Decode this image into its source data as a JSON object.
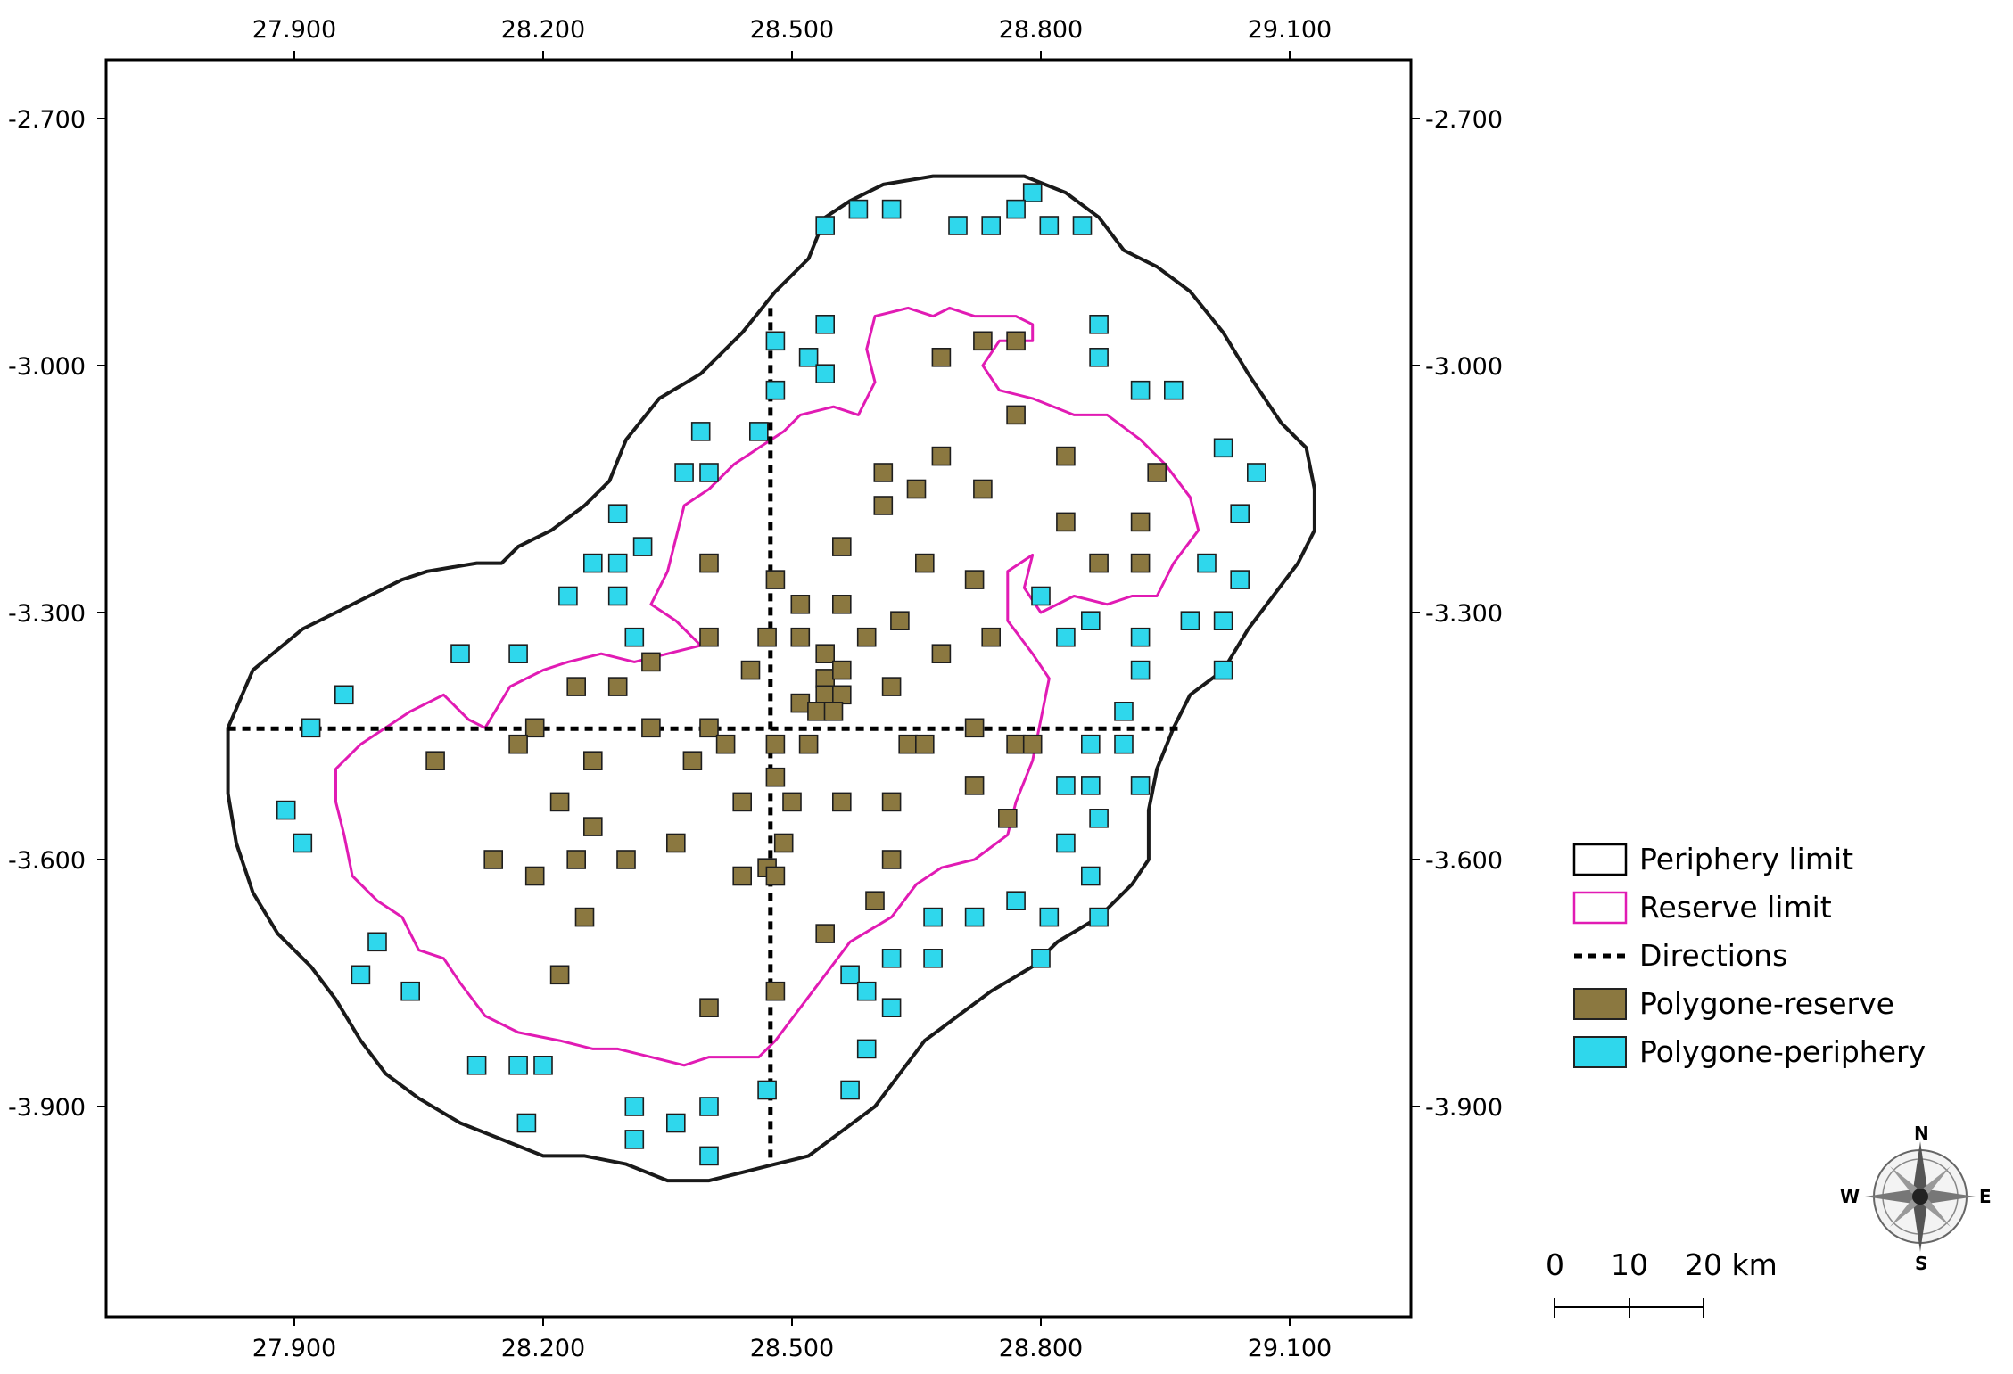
{
  "map": {
    "x_ticks": [
      "27.900",
      "28.200",
      "28.500",
      "28.800",
      "29.100"
    ],
    "y_ticks": [
      "-2.700",
      "-3.000",
      "-3.300",
      "-3.600",
      "-3.900"
    ],
    "x_tick_values": [
      27.9,
      28.2,
      28.5,
      28.8,
      29.1
    ],
    "y_tick_values": [
      -2.7,
      -3.0,
      -3.3,
      -3.6,
      -3.9
    ]
  },
  "legend": {
    "periphery_label": "Periphery limit",
    "reserve_label": "Reserve limit",
    "directions_label": "Directions",
    "polygon_reserve_label": "Polygone-reserve",
    "polygon_periphery_label": "Polygone-periphery"
  },
  "scalebar": {
    "label_0": "0",
    "label_10": "10",
    "label_20": "20 km"
  },
  "compass": {
    "n": "N",
    "s": "S",
    "e": "E",
    "w": "W"
  },
  "colors": {
    "reserve_fill": "#8b7840",
    "periphery_fill": "#2fd7ec",
    "reserve_line": "#e11bb4",
    "boundary_line": "#1a1a1a"
  },
  "chart_data": {
    "type": "map",
    "extent": {
      "lon": [
        27.67,
        29.24
      ],
      "lat": [
        -4.24,
        -2.63
      ]
    },
    "directions": {
      "horizontal_lat": -3.441,
      "horizontal_lon_range": [
        27.82,
        28.965
      ],
      "vertical_lon": 28.474,
      "vertical_lat_range": [
        -2.93,
        -3.965
      ]
    },
    "periphery_limit": [
      [
        27.82,
        -3.44
      ],
      [
        27.85,
        -3.37
      ],
      [
        27.91,
        -3.32
      ],
      [
        27.97,
        -3.29
      ],
      [
        28.03,
        -3.26
      ],
      [
        28.06,
        -3.25
      ],
      [
        28.12,
        -3.24
      ],
      [
        28.15,
        -3.24
      ],
      [
        28.17,
        -3.22
      ],
      [
        28.21,
        -3.2
      ],
      [
        28.25,
        -3.17
      ],
      [
        28.28,
        -3.14
      ],
      [
        28.3,
        -3.09
      ],
      [
        28.34,
        -3.04
      ],
      [
        28.39,
        -3.01
      ],
      [
        28.44,
        -2.96
      ],
      [
        28.48,
        -2.91
      ],
      [
        28.52,
        -2.87
      ],
      [
        28.54,
        -2.82
      ],
      [
        28.57,
        -2.8
      ],
      [
        28.61,
        -2.78
      ],
      [
        28.67,
        -2.77
      ],
      [
        28.72,
        -2.77
      ],
      [
        28.78,
        -2.77
      ],
      [
        28.83,
        -2.79
      ],
      [
        28.87,
        -2.82
      ],
      [
        28.9,
        -2.86
      ],
      [
        28.94,
        -2.88
      ],
      [
        28.98,
        -2.91
      ],
      [
        29.02,
        -2.96
      ],
      [
        29.05,
        -3.01
      ],
      [
        29.09,
        -3.07
      ],
      [
        29.12,
        -3.1
      ],
      [
        29.13,
        -3.15
      ],
      [
        29.13,
        -3.2
      ],
      [
        29.11,
        -3.24
      ],
      [
        29.08,
        -3.28
      ],
      [
        29.05,
        -3.32
      ],
      [
        29.02,
        -3.37
      ],
      [
        28.98,
        -3.4
      ],
      [
        28.96,
        -3.44
      ],
      [
        28.94,
        -3.49
      ],
      [
        28.93,
        -3.54
      ],
      [
        28.93,
        -3.6
      ],
      [
        28.91,
        -3.63
      ],
      [
        28.87,
        -3.67
      ],
      [
        28.82,
        -3.7
      ],
      [
        28.79,
        -3.73
      ],
      [
        28.74,
        -3.76
      ],
      [
        28.7,
        -3.79
      ],
      [
        28.66,
        -3.82
      ],
      [
        28.63,
        -3.86
      ],
      [
        28.6,
        -3.9
      ],
      [
        28.56,
        -3.93
      ],
      [
        28.52,
        -3.96
      ],
      [
        28.48,
        -3.97
      ],
      [
        28.44,
        -3.98
      ],
      [
        28.4,
        -3.99
      ],
      [
        28.35,
        -3.99
      ],
      [
        28.3,
        -3.97
      ],
      [
        28.25,
        -3.96
      ],
      [
        28.2,
        -3.96
      ],
      [
        28.15,
        -3.94
      ],
      [
        28.1,
        -3.92
      ],
      [
        28.05,
        -3.89
      ],
      [
        28.01,
        -3.86
      ],
      [
        27.98,
        -3.82
      ],
      [
        27.95,
        -3.77
      ],
      [
        27.92,
        -3.73
      ],
      [
        27.88,
        -3.69
      ],
      [
        27.85,
        -3.64
      ],
      [
        27.83,
        -3.58
      ],
      [
        27.82,
        -3.52
      ],
      [
        27.82,
        -3.44
      ]
    ],
    "reserve_limit": [
      [
        27.95,
        -3.49
      ],
      [
        27.98,
        -3.46
      ],
      [
        28.01,
        -3.44
      ],
      [
        28.04,
        -3.42
      ],
      [
        28.08,
        -3.4
      ],
      [
        28.11,
        -3.43
      ],
      [
        28.13,
        -3.44
      ],
      [
        28.16,
        -3.39
      ],
      [
        28.2,
        -3.37
      ],
      [
        28.23,
        -3.36
      ],
      [
        28.27,
        -3.35
      ],
      [
        28.31,
        -3.36
      ],
      [
        28.35,
        -3.35
      ],
      [
        28.39,
        -3.34
      ],
      [
        28.36,
        -3.31
      ],
      [
        28.33,
        -3.29
      ],
      [
        28.35,
        -3.25
      ],
      [
        28.36,
        -3.21
      ],
      [
        28.37,
        -3.17
      ],
      [
        28.4,
        -3.15
      ],
      [
        28.43,
        -3.12
      ],
      [
        28.46,
        -3.1
      ],
      [
        28.49,
        -3.08
      ],
      [
        28.51,
        -3.06
      ],
      [
        28.55,
        -3.05
      ],
      [
        28.58,
        -3.06
      ],
      [
        28.6,
        -3.02
      ],
      [
        28.59,
        -2.98
      ],
      [
        28.6,
        -2.94
      ],
      [
        28.64,
        -2.93
      ],
      [
        28.67,
        -2.94
      ],
      [
        28.69,
        -2.93
      ],
      [
        28.72,
        -2.94
      ],
      [
        28.77,
        -2.94
      ],
      [
        28.79,
        -2.95
      ],
      [
        28.79,
        -2.97
      ],
      [
        28.75,
        -2.97
      ],
      [
        28.73,
        -3.0
      ],
      [
        28.75,
        -3.03
      ],
      [
        28.79,
        -3.04
      ],
      [
        28.84,
        -3.06
      ],
      [
        28.88,
        -3.06
      ],
      [
        28.92,
        -3.09
      ],
      [
        28.95,
        -3.12
      ],
      [
        28.98,
        -3.16
      ],
      [
        28.99,
        -3.2
      ],
      [
        28.96,
        -3.24
      ],
      [
        28.94,
        -3.28
      ],
      [
        28.91,
        -3.28
      ],
      [
        28.88,
        -3.29
      ],
      [
        28.84,
        -3.28
      ],
      [
        28.8,
        -3.3
      ],
      [
        28.78,
        -3.27
      ],
      [
        28.79,
        -3.23
      ],
      [
        28.76,
        -3.25
      ],
      [
        28.76,
        -3.31
      ],
      [
        28.79,
        -3.35
      ],
      [
        28.81,
        -3.38
      ],
      [
        28.8,
        -3.43
      ],
      [
        28.79,
        -3.48
      ],
      [
        28.77,
        -3.53
      ],
      [
        28.76,
        -3.57
      ],
      [
        28.72,
        -3.6
      ],
      [
        28.68,
        -3.61
      ],
      [
        28.65,
        -3.63
      ],
      [
        28.62,
        -3.67
      ],
      [
        28.57,
        -3.7
      ],
      [
        28.54,
        -3.74
      ],
      [
        28.51,
        -3.78
      ],
      [
        28.48,
        -3.82
      ],
      [
        28.46,
        -3.84
      ],
      [
        28.43,
        -3.84
      ],
      [
        28.4,
        -3.84
      ],
      [
        28.37,
        -3.85
      ],
      [
        28.33,
        -3.84
      ],
      [
        28.29,
        -3.83
      ],
      [
        28.26,
        -3.83
      ],
      [
        28.22,
        -3.82
      ],
      [
        28.17,
        -3.81
      ],
      [
        28.13,
        -3.79
      ],
      [
        28.1,
        -3.75
      ],
      [
        28.08,
        -3.72
      ],
      [
        28.05,
        -3.71
      ],
      [
        28.03,
        -3.67
      ],
      [
        28.0,
        -3.65
      ],
      [
        27.97,
        -3.62
      ],
      [
        27.96,
        -3.57
      ],
      [
        27.95,
        -3.53
      ],
      [
        27.95,
        -3.49
      ]
    ],
    "polygone_reserve": [
      [
        28.68,
        -2.99
      ],
      [
        28.73,
        -2.97
      ],
      [
        28.77,
        -2.97
      ],
      [
        28.77,
        -3.06
      ],
      [
        28.83,
        -3.11
      ],
      [
        28.68,
        -3.11
      ],
      [
        28.61,
        -3.13
      ],
      [
        28.65,
        -3.15
      ],
      [
        28.73,
        -3.15
      ],
      [
        28.94,
        -3.13
      ],
      [
        28.61,
        -3.17
      ],
      [
        28.92,
        -3.19
      ],
      [
        28.83,
        -3.19
      ],
      [
        28.56,
        -3.22
      ],
      [
        28.66,
        -3.24
      ],
      [
        28.87,
        -3.24
      ],
      [
        28.92,
        -3.24
      ],
      [
        28.4,
        -3.24
      ],
      [
        28.48,
        -3.26
      ],
      [
        28.72,
        -3.26
      ],
      [
        28.51,
        -3.29
      ],
      [
        28.56,
        -3.29
      ],
      [
        28.63,
        -3.31
      ],
      [
        28.4,
        -3.33
      ],
      [
        28.47,
        -3.33
      ],
      [
        28.51,
        -3.33
      ],
      [
        28.59,
        -3.33
      ],
      [
        28.74,
        -3.33
      ],
      [
        28.33,
        -3.36
      ],
      [
        28.45,
        -3.37
      ],
      [
        28.54,
        -3.35
      ],
      [
        28.68,
        -3.35
      ],
      [
        28.54,
        -3.38
      ],
      [
        28.56,
        -3.37
      ],
      [
        28.24,
        -3.39
      ],
      [
        28.29,
        -3.39
      ],
      [
        28.62,
        -3.39
      ],
      [
        28.51,
        -3.41
      ],
      [
        28.54,
        -3.4
      ],
      [
        28.56,
        -3.4
      ],
      [
        28.53,
        -3.42
      ],
      [
        28.55,
        -3.42
      ],
      [
        28.19,
        -3.44
      ],
      [
        28.33,
        -3.44
      ],
      [
        28.4,
        -3.44
      ],
      [
        28.48,
        -3.46
      ],
      [
        28.52,
        -3.46
      ],
      [
        28.72,
        -3.44
      ],
      [
        28.17,
        -3.46
      ],
      [
        28.42,
        -3.46
      ],
      [
        28.64,
        -3.46
      ],
      [
        28.66,
        -3.46
      ],
      [
        28.77,
        -3.46
      ],
      [
        28.79,
        -3.46
      ],
      [
        28.07,
        -3.48
      ],
      [
        28.26,
        -3.48
      ],
      [
        28.38,
        -3.48
      ],
      [
        28.48,
        -3.5
      ],
      [
        28.72,
        -3.51
      ],
      [
        28.22,
        -3.53
      ],
      [
        28.44,
        -3.53
      ],
      [
        28.5,
        -3.53
      ],
      [
        28.56,
        -3.53
      ],
      [
        28.62,
        -3.53
      ],
      [
        28.26,
        -3.56
      ],
      [
        28.36,
        -3.58
      ],
      [
        28.49,
        -3.58
      ],
      [
        28.76,
        -3.55
      ],
      [
        28.14,
        -3.6
      ],
      [
        28.24,
        -3.6
      ],
      [
        28.3,
        -3.6
      ],
      [
        28.47,
        -3.61
      ],
      [
        28.19,
        -3.62
      ],
      [
        28.44,
        -3.62
      ],
      [
        28.48,
        -3.62
      ],
      [
        28.62,
        -3.6
      ],
      [
        28.6,
        -3.65
      ],
      [
        28.25,
        -3.67
      ],
      [
        28.54,
        -3.69
      ],
      [
        28.22,
        -3.74
      ],
      [
        28.48,
        -3.76
      ],
      [
        28.4,
        -3.78
      ]
    ],
    "polygone_periphery": [
      [
        28.79,
        -2.79
      ],
      [
        28.58,
        -2.81
      ],
      [
        28.62,
        -2.81
      ],
      [
        28.54,
        -2.83
      ],
      [
        28.7,
        -2.83
      ],
      [
        28.74,
        -2.83
      ],
      [
        28.77,
        -2.81
      ],
      [
        28.81,
        -2.83
      ],
      [
        28.85,
        -2.83
      ],
      [
        28.54,
        -2.95
      ],
      [
        28.87,
        -2.95
      ],
      [
        28.48,
        -2.97
      ],
      [
        28.87,
        -2.99
      ],
      [
        28.52,
        -2.99
      ],
      [
        28.54,
        -3.01
      ],
      [
        28.48,
        -3.03
      ],
      [
        28.92,
        -3.03
      ],
      [
        28.96,
        -3.03
      ],
      [
        28.39,
        -3.08
      ],
      [
        28.46,
        -3.08
      ],
      [
        29.02,
        -3.1
      ],
      [
        28.37,
        -3.13
      ],
      [
        28.4,
        -3.13
      ],
      [
        29.06,
        -3.13
      ],
      [
        28.29,
        -3.18
      ],
      [
        29.04,
        -3.18
      ],
      [
        28.32,
        -3.22
      ],
      [
        28.26,
        -3.24
      ],
      [
        28.29,
        -3.24
      ],
      [
        29.0,
        -3.24
      ],
      [
        29.04,
        -3.26
      ],
      [
        28.23,
        -3.28
      ],
      [
        28.29,
        -3.28
      ],
      [
        28.8,
        -3.28
      ],
      [
        28.31,
        -3.33
      ],
      [
        28.86,
        -3.31
      ],
      [
        28.92,
        -3.33
      ],
      [
        28.98,
        -3.31
      ],
      [
        29.02,
        -3.31
      ],
      [
        28.1,
        -3.35
      ],
      [
        28.17,
        -3.35
      ],
      [
        28.83,
        -3.33
      ],
      [
        28.92,
        -3.37
      ],
      [
        29.02,
        -3.37
      ],
      [
        27.96,
        -3.4
      ],
      [
        27.92,
        -3.44
      ],
      [
        28.9,
        -3.42
      ],
      [
        28.86,
        -3.46
      ],
      [
        28.9,
        -3.46
      ],
      [
        28.83,
        -3.51
      ],
      [
        28.86,
        -3.51
      ],
      [
        28.92,
        -3.51
      ],
      [
        27.89,
        -3.54
      ],
      [
        28.87,
        -3.55
      ],
      [
        27.91,
        -3.58
      ],
      [
        28.83,
        -3.58
      ],
      [
        28.86,
        -3.62
      ],
      [
        28.77,
        -3.65
      ],
      [
        28.67,
        -3.67
      ],
      [
        28.72,
        -3.67
      ],
      [
        28.81,
        -3.67
      ],
      [
        28.87,
        -3.67
      ],
      [
        28.0,
        -3.7
      ],
      [
        28.62,
        -3.72
      ],
      [
        28.67,
        -3.72
      ],
      [
        28.8,
        -3.72
      ],
      [
        27.98,
        -3.74
      ],
      [
        28.57,
        -3.74
      ],
      [
        28.59,
        -3.76
      ],
      [
        28.04,
        -3.76
      ],
      [
        28.62,
        -3.78
      ],
      [
        28.59,
        -3.83
      ],
      [
        28.12,
        -3.85
      ],
      [
        28.17,
        -3.85
      ],
      [
        28.2,
        -3.85
      ],
      [
        28.47,
        -3.88
      ],
      [
        28.57,
        -3.88
      ],
      [
        28.31,
        -3.9
      ],
      [
        28.4,
        -3.9
      ],
      [
        28.18,
        -3.92
      ],
      [
        28.36,
        -3.92
      ],
      [
        28.31,
        -3.94
      ],
      [
        28.4,
        -3.96
      ]
    ]
  }
}
